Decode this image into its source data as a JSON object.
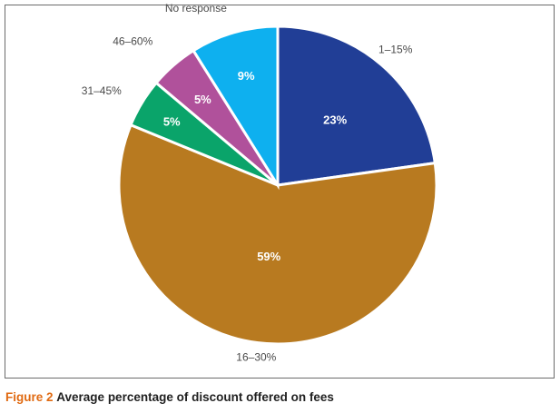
{
  "caption": {
    "figure_label": "Figure 2",
    "text": "Average percentage of discount offered on fees"
  },
  "chart_data": {
    "type": "pie",
    "title": "",
    "slices": [
      {
        "label": "1–15%",
        "value": 23,
        "display": "23%",
        "color": "#213e96"
      },
      {
        "label": "16–30%",
        "value": 59,
        "display": "59%",
        "color": "#b87a20"
      },
      {
        "label": "31–45%",
        "value": 5,
        "display": "5%",
        "color": "#0aa46a"
      },
      {
        "label": "46–60%",
        "value": 5,
        "display": "5%",
        "color": "#b0519b"
      },
      {
        "label": "No response",
        "value": 9,
        "display": "9%",
        "color": "#0eb0ef"
      }
    ]
  }
}
